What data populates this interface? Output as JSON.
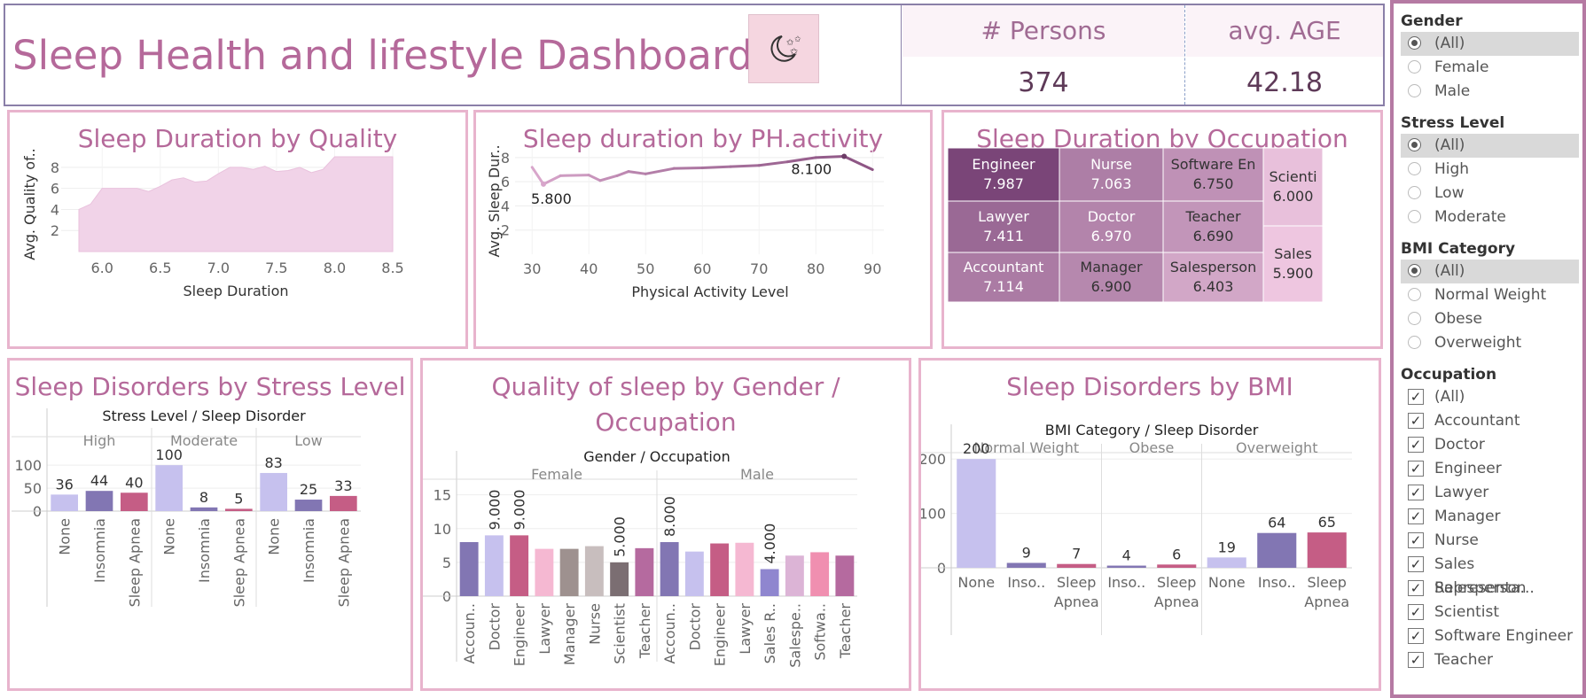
{
  "header": {
    "title": "Sleep Health and lifestyle Dashboard",
    "logo_icon": "moon-stars-icon",
    "kpis": [
      {
        "label": "# Persons",
        "value": "374"
      },
      {
        "label": "avg. AGE",
        "value": "42.18"
      }
    ]
  },
  "colors": {
    "title": "#b5699a",
    "frame": "#e8b4cd",
    "lavender": "#c6c1ee",
    "purple": "#8276b3",
    "rose": "#c55d85",
    "area_fill": "#f1d3e8"
  },
  "panels": {
    "quality": {
      "title": "Sleep Duration by Quality"
    },
    "activity": {
      "title": "Sleep duration by PH.activity"
    },
    "occupation": {
      "title": "Sleep Duration by Occupation"
    },
    "stress": {
      "title": "Sleep Disorders by Stress Level"
    },
    "gender": {
      "title_line1": "Quality of sleep  by Gender /",
      "title_line2": "Occupation"
    },
    "bmi": {
      "title": "Sleep Disorders by BMI"
    }
  },
  "chart_data": [
    {
      "id": "quality",
      "type": "area",
      "title": "Sleep Duration by Quality",
      "xlabel": "Sleep Duration",
      "ylabel": "Avg. Quality of..",
      "xlim": [
        5.8,
        8.5
      ],
      "ylim": [
        0,
        9
      ],
      "xticks": [
        "6.0",
        "6.5",
        "7.0",
        "7.5",
        "8.0",
        "8.5"
      ],
      "yticks": [
        "2",
        "4",
        "6",
        "8"
      ],
      "x": [
        5.8,
        5.9,
        6.0,
        6.1,
        6.2,
        6.3,
        6.4,
        6.5,
        6.6,
        6.7,
        6.8,
        6.9,
        7.0,
        7.1,
        7.2,
        7.3,
        7.4,
        7.5,
        7.6,
        7.7,
        7.8,
        7.9,
        8.0,
        8.1,
        8.2,
        8.3,
        8.4,
        8.5
      ],
      "y": [
        4.0,
        4.5,
        6.0,
        6.0,
        6.0,
        6.0,
        5.7,
        6.2,
        6.8,
        7.0,
        6.6,
        6.7,
        7.4,
        8.0,
        8.0,
        7.8,
        8.1,
        7.6,
        7.7,
        8.0,
        7.5,
        7.8,
        9.0,
        9.0,
        9.0,
        9.0,
        9.0,
        9.0
      ]
    },
    {
      "id": "activity",
      "type": "line",
      "title": "Sleep duration by PH.activity",
      "xlabel": "Physical Activity Level",
      "ylabel": "Avg. Sleep Dur..",
      "xlim": [
        27,
        92
      ],
      "ylim": [
        0,
        8.8
      ],
      "xticks": [
        "30",
        "40",
        "50",
        "60",
        "70",
        "80",
        "90"
      ],
      "yticks": [
        "2",
        "4",
        "6",
        "8"
      ],
      "x": [
        30,
        32,
        35,
        40,
        42,
        45,
        47,
        50,
        55,
        60,
        65,
        70,
        75,
        80,
        85,
        90
      ],
      "y": [
        7.2,
        5.8,
        6.5,
        6.55,
        6.1,
        6.5,
        6.85,
        6.65,
        7.1,
        7.15,
        7.25,
        7.35,
        7.65,
        8.0,
        8.1,
        7.0
      ],
      "labels": [
        {
          "text": "5.800",
          "x": 32,
          "y": 5.8
        },
        {
          "text": "8.100",
          "x": 85,
          "y": 8.1
        }
      ]
    },
    {
      "id": "occupation",
      "type": "heatmap",
      "title": "Sleep Duration by Occupation",
      "cells": [
        {
          "name": "Engineer",
          "value": "7.987"
        },
        {
          "name": "Lawyer",
          "value": "7.411"
        },
        {
          "name": "Accountant",
          "value": "7.114"
        },
        {
          "name": "Nurse",
          "value": "7.063"
        },
        {
          "name": "Doctor",
          "value": "6.970"
        },
        {
          "name": "Manager",
          "value": "6.900"
        },
        {
          "name": "Software En",
          "value": "6.750"
        },
        {
          "name": "Teacher",
          "value": "6.690"
        },
        {
          "name": "Salesperson",
          "value": "6.403"
        },
        {
          "name": "Scienti",
          "value": "6.000"
        },
        {
          "name": "Sales",
          "value": "5.900"
        }
      ]
    },
    {
      "id": "stress",
      "type": "bar",
      "title": "Sleep Disorders by Stress Level",
      "header": "Stress Level  /  Sleep Disorder",
      "ylim": [
        0,
        108
      ],
      "yticks": [
        "0",
        "50",
        "100"
      ],
      "groups": [
        {
          "name": "High",
          "bars": [
            {
              "label": "None",
              "value": 36
            },
            {
              "label": "Insomnia",
              "value": 44
            },
            {
              "label": "Sleep Apnea",
              "value": 40
            }
          ]
        },
        {
          "name": "Moderate",
          "bars": [
            {
              "label": "None",
              "value": 100
            },
            {
              "label": "Insomnia",
              "value": 8
            },
            {
              "label": "Sleep Apnea",
              "value": 5
            }
          ]
        },
        {
          "name": "Low",
          "bars": [
            {
              "label": "None",
              "value": 83
            },
            {
              "label": "Insomnia",
              "value": 25
            },
            {
              "label": "Sleep Apnea",
              "value": 33
            }
          ]
        }
      ]
    },
    {
      "id": "gender",
      "type": "bar",
      "title": "Quality of sleep  by Gender / Occupation",
      "header": "Gender  /  Occupation",
      "ylim": [
        0,
        16
      ],
      "yticks": [
        "0",
        "5",
        "10",
        "15"
      ],
      "groups": [
        {
          "name": "Female",
          "bars": [
            {
              "label": "Accoun..",
              "value": 8.0
            },
            {
              "label": "Doctor",
              "value": 9.0,
              "data_label": "9.000"
            },
            {
              "label": "Engineer",
              "value": 9.0,
              "data_label": "9.000"
            },
            {
              "label": "Lawyer",
              "value": 7.0
            },
            {
              "label": "Manager",
              "value": 7.0
            },
            {
              "label": "Nurse",
              "value": 7.4
            },
            {
              "label": "Scientist",
              "value": 5.0,
              "data_label": "5.000"
            },
            {
              "label": "Teacher",
              "value": 7.1
            }
          ]
        },
        {
          "name": "Male",
          "bars": [
            {
              "label": "Accoun..",
              "value": 8.0,
              "data_label": "8.000"
            },
            {
              "label": "Doctor",
              "value": 6.6
            },
            {
              "label": "Engineer",
              "value": 7.8
            },
            {
              "label": "Lawyer",
              "value": 7.9
            },
            {
              "label": "Sales R..",
              "value": 4.0,
              "data_label": "4.000"
            },
            {
              "label": "Salespe..",
              "value": 6.0
            },
            {
              "label": "Softwa..",
              "value": 6.5
            },
            {
              "label": "Teacher",
              "value": 6.0
            }
          ]
        }
      ]
    },
    {
      "id": "bmi",
      "type": "bar",
      "title": "Sleep Disorders by BMI",
      "header": "BMI Category  /  Sleep Disorder",
      "ylim": [
        0,
        215
      ],
      "yticks": [
        "0",
        "100",
        "200"
      ],
      "groups": [
        {
          "name": "Normal Weight",
          "bars": [
            {
              "label": "None",
              "value": 200
            },
            {
              "label": "Inso..",
              "value": 9
            },
            {
              "label": "Sleep Apnea",
              "value": 7
            }
          ]
        },
        {
          "name": "Obese",
          "bars": [
            {
              "label": "Inso..",
              "value": 4
            },
            {
              "label": "Sleep Apnea",
              "value": 6
            }
          ]
        },
        {
          "name": "Overweight",
          "bars": [
            {
              "label": "None",
              "value": 19
            },
            {
              "label": "Inso..",
              "value": 64
            },
            {
              "label": "Sleep Apnea",
              "value": 65
            }
          ]
        }
      ]
    }
  ],
  "filters": [
    {
      "title": "Gender",
      "type": "radio",
      "options": [
        {
          "label": "(All)",
          "selected": true
        },
        {
          "label": "Female"
        },
        {
          "label": "Male"
        }
      ]
    },
    {
      "title": "Stress Level",
      "type": "radio",
      "options": [
        {
          "label": "(All)",
          "selected": true
        },
        {
          "label": "High"
        },
        {
          "label": "Low"
        },
        {
          "label": "Moderate"
        }
      ]
    },
    {
      "title": "BMI Category",
      "type": "radio",
      "options": [
        {
          "label": "(All)",
          "selected": true
        },
        {
          "label": "Normal Weight"
        },
        {
          "label": "Obese"
        },
        {
          "label": "Overweight"
        }
      ]
    },
    {
      "title": "Occupation",
      "type": "checkbox",
      "options": [
        {
          "label": "(All)",
          "selected": true
        },
        {
          "label": "Accountant",
          "selected": true
        },
        {
          "label": "Doctor",
          "selected": true
        },
        {
          "label": "Engineer",
          "selected": true
        },
        {
          "label": "Lawyer",
          "selected": true
        },
        {
          "label": "Manager",
          "selected": true
        },
        {
          "label": "Nurse",
          "selected": true
        },
        {
          "label": "Sales Representa...",
          "selected": true
        },
        {
          "label": "Salesperson",
          "selected": true
        },
        {
          "label": "Scientist",
          "selected": true
        },
        {
          "label": "Software Engineer",
          "selected": true
        },
        {
          "label": "Teacher",
          "selected": true
        }
      ]
    }
  ]
}
